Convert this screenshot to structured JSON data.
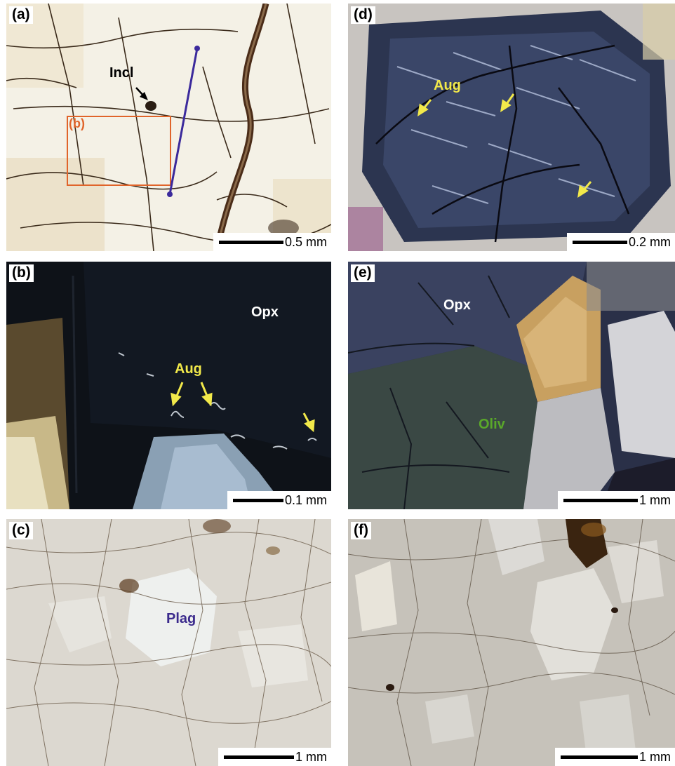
{
  "panels": {
    "a": {
      "label": "(a)",
      "scale": "0.5 mm",
      "incl": "Incl",
      "subregion": "(b)"
    },
    "b": {
      "label": "(b)",
      "scale": "0.1 mm",
      "opx": "Opx",
      "aug": "Aug"
    },
    "c": {
      "label": "(c)",
      "scale": "1 mm",
      "plag": "Plag"
    },
    "d": {
      "label": "(d)",
      "scale": "0.2 mm",
      "aug": "Aug"
    },
    "e": {
      "label": "(e)",
      "scale": "1 mm",
      "opx": "Opx",
      "oliv": "Oliv"
    },
    "f": {
      "label": "(f)",
      "scale": "1 mm"
    }
  },
  "colors": {
    "label_yellow": "#f2e94a",
    "label_white": "#ffffff",
    "label_green": "#5aa82a",
    "label_purple": "#3b2a8c",
    "box_orange": "#e0642a",
    "line_blue": "#3b2a9c"
  }
}
